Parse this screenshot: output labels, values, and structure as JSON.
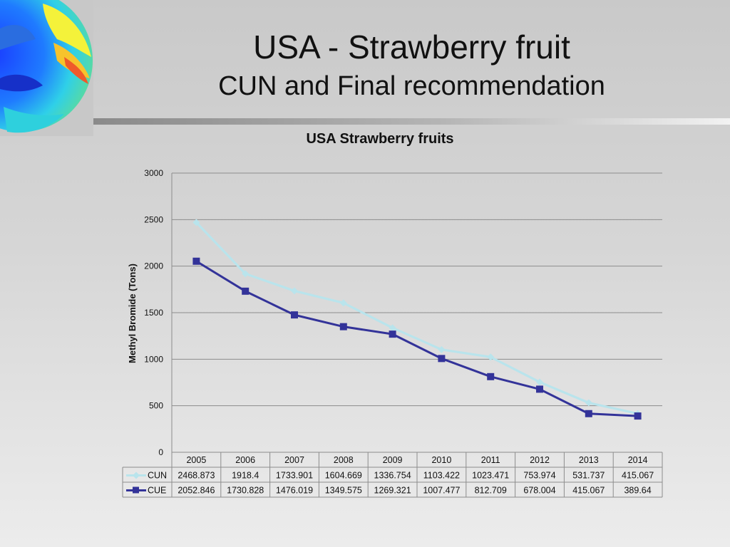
{
  "slide": {
    "title": "USA - Strawberry fruit",
    "subtitle": "CUN and Final recommendation"
  },
  "chart_data": {
    "type": "line",
    "title": "USA Strawberry fruits",
    "xlabel": "",
    "ylabel": "Methyl Bromide (Tons)",
    "ylim": [
      0,
      3000
    ],
    "yticks": [
      0,
      500,
      1000,
      1500,
      2000,
      2500,
      3000
    ],
    "grid": true,
    "legend": "data-table",
    "categories": [
      "2005",
      "2006",
      "2007",
      "2008",
      "2009",
      "2010",
      "2011",
      "2012",
      "2013",
      "2014"
    ],
    "series": [
      {
        "name": "CUN",
        "color": "#b9e4ec",
        "marker": "diamond",
        "values": [
          2468.873,
          1918.4,
          1733.901,
          1604.669,
          1336.754,
          1103.422,
          1023.471,
          753.974,
          531.737,
          415.067
        ],
        "labels": [
          "2468.873",
          "1918.4",
          "1733.901",
          "1604.669",
          "1336.754",
          "1103.422",
          "1023.471",
          "753.974",
          "531.737",
          "415.067"
        ]
      },
      {
        "name": "CUE",
        "color": "#333399",
        "marker": "square",
        "values": [
          2052.846,
          1730.828,
          1476.019,
          1349.575,
          1269.321,
          1007.477,
          812.709,
          678.004,
          415.067,
          389.64
        ],
        "labels": [
          "2052.846",
          "1730.828",
          "1476.019",
          "1349.575",
          "1269.321",
          "1007.477",
          "812.709",
          "678.004",
          "415.067",
          "389.64"
        ]
      }
    ]
  }
}
